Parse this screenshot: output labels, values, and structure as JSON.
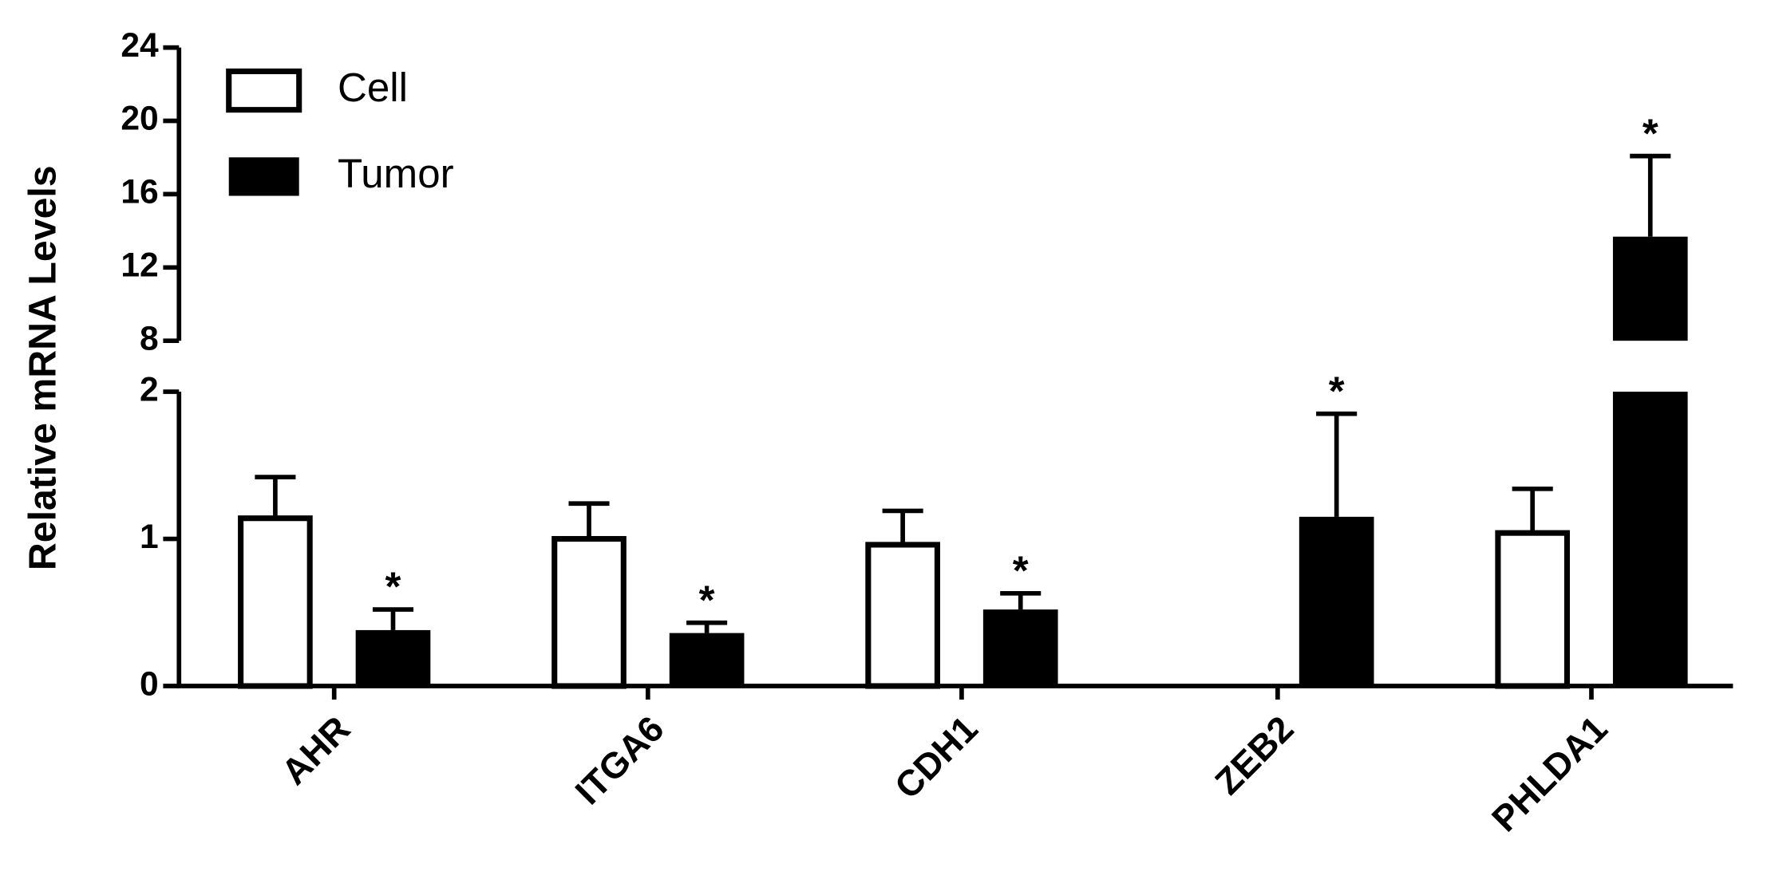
{
  "chart_data": {
    "type": "bar",
    "y_label": "Relative mRNA Levels",
    "categories": [
      "AHR",
      "ITGA6",
      "CDH1",
      "ZEB2",
      "PHLDA1"
    ],
    "series": [
      {
        "name": "Cell",
        "color": "#ffffff",
        "values": [
          1.14,
          1.0,
          0.96,
          0,
          1.04
        ],
        "errors": [
          0.28,
          0.24,
          0.23,
          null,
          0.3
        ]
      },
      {
        "name": "Tumor",
        "color": "#000000",
        "values": [
          0.38,
          0.36,
          0.52,
          1.15,
          13.68
        ],
        "errors": [
          0.14,
          0.07,
          0.11,
          0.7,
          4.4
        ],
        "significance": [
          "*",
          "*",
          "*",
          "*",
          "*"
        ]
      }
    ],
    "segments": [
      {
        "ylim": [
          0,
          2
        ],
        "yticks": [
          0,
          1,
          2
        ]
      },
      {
        "ylim": [
          8,
          24
        ],
        "yticks": [
          8,
          12,
          16,
          20,
          24
        ]
      }
    ],
    "legend": "top-left"
  }
}
